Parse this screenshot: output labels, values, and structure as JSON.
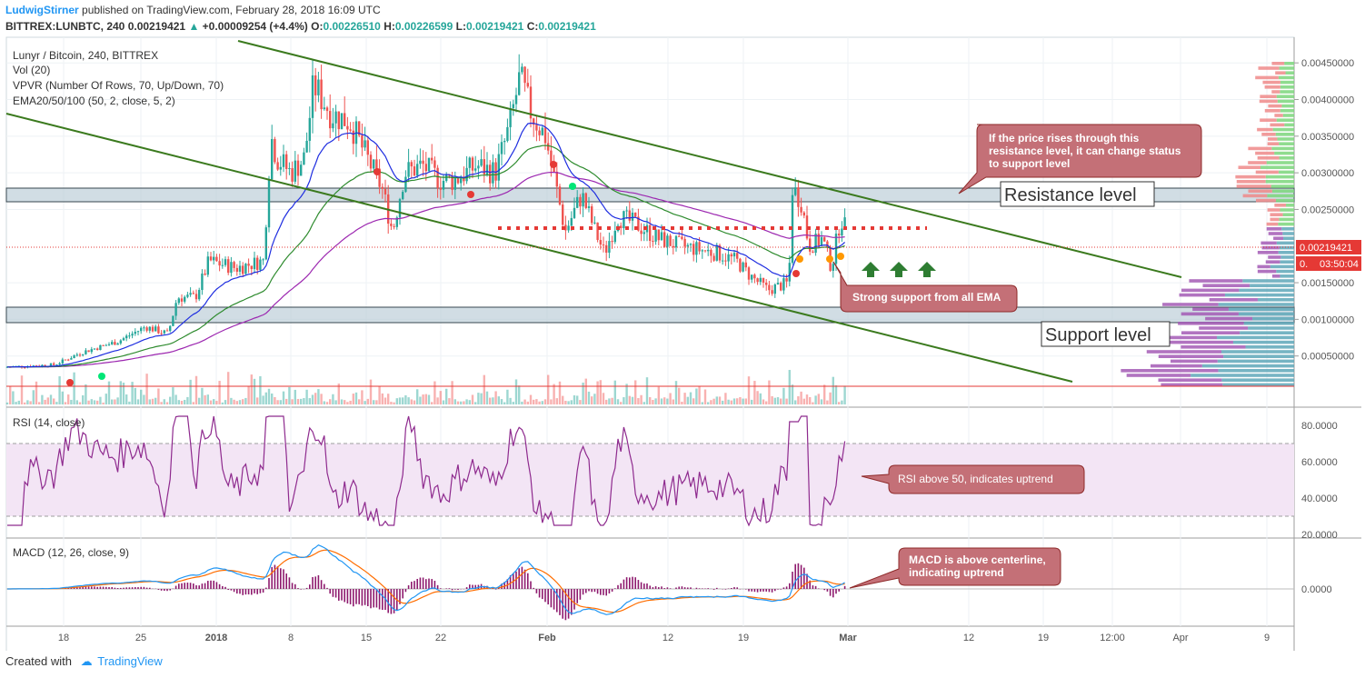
{
  "header": {
    "author": "LudwigStirner",
    "published": "published on TradingView.com, February 28, 2018 16:09 UTC",
    "symbol": "BITTREX:LUNBTC, 240",
    "last": "0.00219421",
    "change_arrow": "▲",
    "change": "+0.00009254 (+4.4%)",
    "o_label": "O:",
    "o": "0.00226510",
    "h_label": "H:",
    "h": "0.00226599",
    "l_label": "L:",
    "l": "0.00219421",
    "c_label": "C:",
    "c": "0.00219421"
  },
  "legend": {
    "title": "Lunyr / Bitcoin, 240, BITTREX",
    "vol": "Vol (20)",
    "vpvr": "VPVR (Number Of Rows, 70, Up/Down, 70)",
    "ema": "EMA20/50/100 (50, 2, close, 5, 2)",
    "rsi": "RSI (14, close)",
    "macd": "MACD (12, 26, close, 9)"
  },
  "annotations": {
    "resistance_label": "Resistance level",
    "support_label": "Support level",
    "resistance_note": "If the price rises through this resistance level, it can change status to support level",
    "support_note": "Strong support from all EMA",
    "rsi_note": "RSI above 50, indicates uptrend",
    "macd_note": "MACD is above centerline, indicating uptrend"
  },
  "price_badges": {
    "last": "0.00219421",
    "countdown": "03:50:04",
    "countdown_prefix": "0."
  },
  "footer": {
    "created": "Created with",
    "brand": "TradingView"
  },
  "colors": {
    "up": "#26a69a",
    "down": "#ef5350",
    "trend": "#3b7a1e",
    "ema20": "#1f2ee0",
    "ema50": "#2e8b2e",
    "ema100": "#9c27b0",
    "resistance_zone": "#b9cbd6",
    "rsi_line": "#8e2a8e",
    "rsi_band": "#f3e5f5",
    "macd_line": "#2196f3",
    "signal_line": "#ff6d00",
    "hist": "#8e1a6e",
    "note_fill": "#c47077",
    "note_border": "#8e2a2a",
    "arrow": "#2e7d32"
  },
  "chart_data": [
    {
      "type": "candlestick",
      "title": "Lunyr / Bitcoin, 240, BITTREX",
      "price_axis_ticks": [
        "0.00450000",
        "0.00400000",
        "0.00350000",
        "0.00300000",
        "0.00250000",
        "0.00150000",
        "0.00100000",
        "0.00050000"
      ],
      "time_axis_ticks": [
        "18",
        "25",
        "2018",
        "8",
        "15",
        "22",
        "Feb",
        "12",
        "19",
        "Mar",
        "12",
        "19",
        "12:00",
        "Apr",
        "9"
      ],
      "y_range": [
        0.0,
        0.0048
      ],
      "last_price": 0.00219421,
      "resistance_zone": [
        0.0028,
        0.003
      ],
      "support_zone": [
        0.00118,
        0.00138
      ],
      "dotted_level": 0.00245,
      "series_note": "EMA20 (blue), EMA50 (green), EMA100 (purple); volume bars; VPVR profile on right"
    },
    {
      "type": "line",
      "title": "RSI (14, close)",
      "axis_ticks": [
        "80.0000",
        "60.0000",
        "40.0000",
        "20.0000"
      ],
      "y_range": [
        20,
        90
      ],
      "bands": [
        30,
        70
      ]
    },
    {
      "type": "line",
      "title": "MACD (12, 26, close, 9)",
      "axis_ticks": [
        "0.0000"
      ],
      "centerline": 0
    }
  ]
}
